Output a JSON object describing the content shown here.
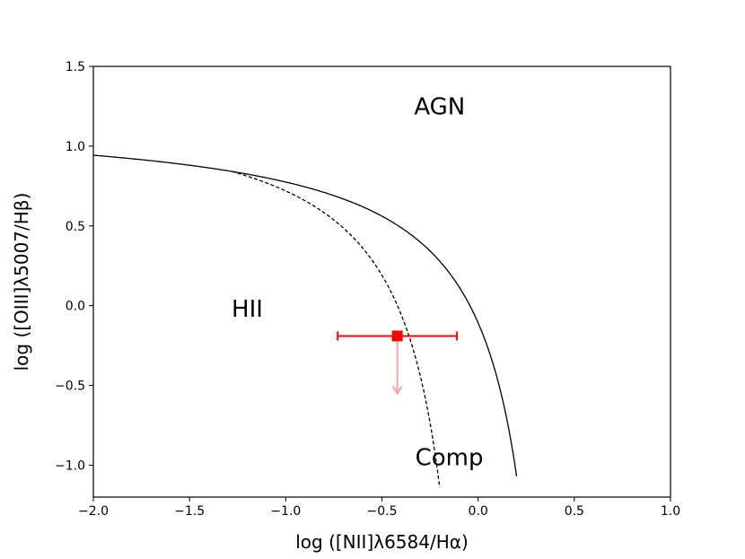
{
  "chart_data": {
    "type": "scatter",
    "title": "",
    "xlabel": "log ([NII]λ6584/Hα)",
    "ylabel": "log ([OIII]λ5007/Hβ)",
    "xlim": [
      -2.0,
      1.0
    ],
    "ylim": [
      -1.2,
      1.5
    ],
    "xticks": [
      -2.0,
      -1.5,
      -1.0,
      -0.5,
      0.0,
      0.5,
      1.0
    ],
    "xtick_labels": [
      "−2.0",
      "−1.5",
      "−1.0",
      "−0.5",
      "0.0",
      "0.5",
      "1.0"
    ],
    "yticks": [
      -1.0,
      -0.5,
      0.0,
      0.5,
      1.0,
      1.5
    ],
    "ytick_labels": [
      "−1.0",
      "−0.5",
      "0.0",
      "0.5",
      "1.0",
      "1.5"
    ],
    "grid": false,
    "curves": [
      {
        "style": "solid",
        "color": "#000000",
        "function": "0.61/(x-0.47)+1.19",
        "x_range": [
          -2.0,
          0.2
        ]
      },
      {
        "style": "dashed",
        "color": "#000000",
        "function": "0.61/(x-0.05)+1.3",
        "x_range": [
          -1.28,
          -0.2
        ]
      }
    ],
    "region_labels": [
      {
        "text": "AGN",
        "x": -0.2,
        "y": 1.25
      },
      {
        "text": "HII",
        "x": -1.2,
        "y": -0.02
      },
      {
        "text": "Comp",
        "x": -0.15,
        "y": -0.95
      }
    ],
    "points": [
      {
        "x": -0.42,
        "y": -0.19,
        "xerr": [
          0.31,
          0.31
        ],
        "upper_limit": true,
        "arrow_to": -0.55,
        "color": "#ff0000",
        "arrow_color": "#f4a5a5",
        "marker": "square"
      }
    ]
  }
}
